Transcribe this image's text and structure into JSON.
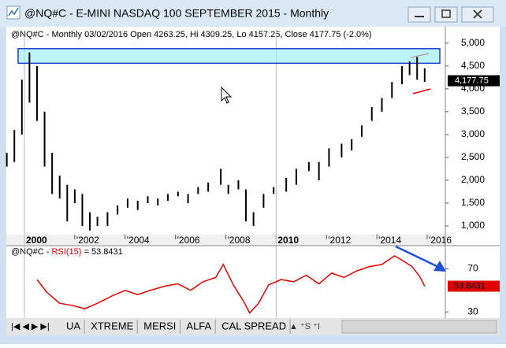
{
  "window": {
    "title": "@NQ#C - E-MINI NASDAQ 100 SEPTEMBER 2015 - Monthly"
  },
  "tabs": [
    "UA",
    "XTREME",
    "MERSI",
    "ALFA",
    "CAL SPREAD"
  ],
  "chart_data": [
    {
      "type": "range",
      "header": "@NQ#C - Monthly 03/02/2016 Open 4263.25, Hi 4309.25, Lo 4157.25, Close 4177.75 (-2.0%)",
      "color": "#000000",
      "zone": [
        4560,
        4880
      ],
      "zone_color": "#9ff0f8",
      "last_price": {
        "value": 4177.75,
        "label": "4,177.75"
      },
      "x": [
        1999.3,
        1999.6,
        1999.9,
        2000.2,
        2000.5,
        2000.8,
        2001.1,
        2001.4,
        2001.7,
        2002.0,
        2002.3,
        2002.6,
        2002.9,
        2003.3,
        2003.7,
        2004.1,
        2004.5,
        2004.9,
        2005.3,
        2005.7,
        2006.1,
        2006.5,
        2006.9,
        2007.3,
        2007.8,
        2008.1,
        2008.5,
        2008.8,
        2009.1,
        2009.5,
        2009.9,
        2010.4,
        2010.8,
        2011.3,
        2011.7,
        2012.1,
        2012.6,
        2013.0,
        2013.4,
        2013.8,
        2014.2,
        2014.6,
        2015.0,
        2015.3,
        2015.6,
        2015.9
      ],
      "low": [
        2300,
        2400,
        3000,
        3700,
        3300,
        2300,
        1700,
        1600,
        1100,
        1500,
        1000,
        900,
        1000,
        1000,
        1250,
        1400,
        1350,
        1500,
        1450,
        1550,
        1650,
        1500,
        1700,
        1750,
        1900,
        1700,
        1800,
        1100,
        1000,
        1400,
        1700,
        1750,
        1900,
        2200,
        2000,
        2300,
        2500,
        2650,
        2950,
        3300,
        3500,
        3800,
        4100,
        4300,
        4200,
        4150
      ],
      "high": [
        2600,
        3100,
        4200,
        4800,
        4500,
        3500,
        2600,
        2100,
        1900,
        1800,
        1700,
        1300,
        1200,
        1300,
        1450,
        1600,
        1550,
        1650,
        1600,
        1700,
        1750,
        1700,
        1850,
        1950,
        2250,
        1900,
        2000,
        1800,
        1300,
        1700,
        1850,
        2050,
        2250,
        2400,
        2400,
        2700,
        2800,
        2900,
        3200,
        3600,
        3800,
        4150,
        4500,
        4600,
        4700,
        4450
      ],
      "xlim": [
        1999.28,
        2016.72
      ],
      "xticks": [
        {
          "value": 2000,
          "label": "2000"
        },
        {
          "value": 2002,
          "label": "'2002"
        },
        {
          "value": 2004,
          "label": "'2004"
        },
        {
          "value": 2006,
          "label": "'2006"
        },
        {
          "value": 2008,
          "label": "'2008"
        },
        {
          "value": 2010,
          "label": "2010"
        },
        {
          "value": 2012,
          "label": "'2012"
        },
        {
          "value": 2014,
          "label": "'2014"
        },
        {
          "value": 2016,
          "label": "'2016"
        }
      ],
      "bold_xticks": [
        2000,
        2010
      ],
      "ylim": [
        810,
        5290
      ],
      "yticks": [
        {
          "value": 1000,
          "label": "1,000"
        },
        {
          "value": 1500,
          "label": "1,500"
        },
        {
          "value": 2000,
          "label": "2,000"
        },
        {
          "value": 2500,
          "label": "2,500"
        },
        {
          "value": 3000,
          "label": "3,000"
        },
        {
          "value": 3500,
          "label": "3,500"
        },
        {
          "value": 4000,
          "label": "4,000"
        },
        {
          "value": 4500,
          "label": "4,500"
        },
        {
          "value": 5000,
          "label": "5,000"
        }
      ]
    },
    {
      "type": "line",
      "header": [
        "@NQ#C - ",
        "RSI(15)",
        " = 53.8431"
      ],
      "color": "#e00000",
      "x": [
        2000.5,
        2000.9,
        2001.4,
        2001.9,
        2002.4,
        2002.9,
        2003.5,
        2004.0,
        2004.5,
        2005.0,
        2005.6,
        2006.1,
        2006.6,
        2007.1,
        2007.6,
        2007.9,
        2008.3,
        2008.7,
        2008.95,
        2009.3,
        2009.7,
        2010.2,
        2010.7,
        2011.2,
        2011.7,
        2012.2,
        2012.7,
        2013.2,
        2013.7,
        2014.2,
        2014.7,
        2015.0,
        2015.4,
        2015.7,
        2015.9
      ],
      "values": [
        60,
        48,
        38,
        36,
        33,
        38,
        45,
        50,
        46,
        50,
        54,
        56,
        50,
        58,
        62,
        74,
        55,
        40,
        29,
        38,
        55,
        60,
        58,
        64,
        56,
        66,
        62,
        68,
        72,
        74,
        82,
        78,
        72,
        63,
        53.8431
      ],
      "last_value": 53.8431,
      "xlim": [
        1999.28,
        2016.72
      ],
      "ylim": [
        25,
        90
      ],
      "yticks": [
        30,
        70
      ]
    }
  ]
}
